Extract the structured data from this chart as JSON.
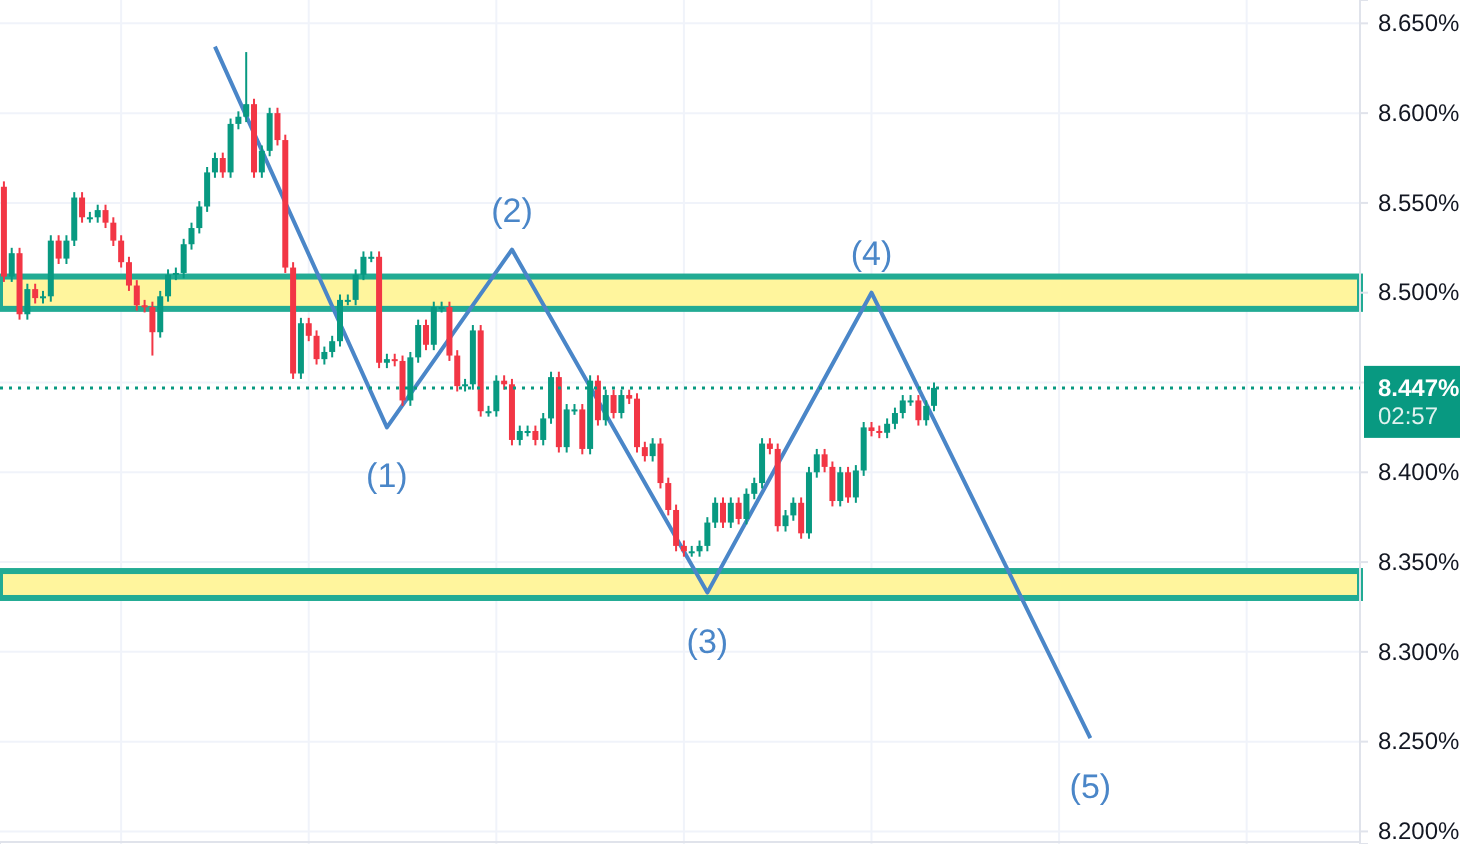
{
  "chart_data": {
    "type": "candlestick",
    "categories": [
      null,
      null,
      null,
      null,
      null,
      null,
      null,
      null,
      null,
      null,
      null,
      null,
      null,
      null,
      null,
      null,
      null,
      null,
      null,
      null,
      null,
      null,
      null,
      null,
      null,
      null,
      null,
      null,
      null,
      null,
      null,
      null,
      null,
      null,
      null,
      null,
      null,
      null,
      null,
      null,
      null,
      null,
      null,
      null,
      null,
      null,
      null,
      null,
      null,
      null,
      null,
      null,
      null,
      null,
      null,
      null,
      null,
      null,
      null,
      null,
      null,
      null,
      null,
      null,
      null,
      null,
      null,
      null,
      null,
      null,
      null,
      null,
      null,
      null,
      null,
      null,
      null,
      null,
      null,
      null,
      null,
      null,
      null,
      null,
      null,
      null,
      null,
      null,
      null,
      null,
      null,
      null,
      null,
      null,
      null,
      null,
      null,
      null,
      null,
      null,
      null,
      null,
      null,
      null,
      null,
      null,
      null,
      null,
      null,
      null,
      null,
      null,
      null,
      null,
      null,
      null,
      null,
      null,
      null,
      null,
      null,
      null,
      null,
      null,
      null,
      null,
      null,
      null,
      null,
      null,
      null,
      null,
      null,
      null,
      null,
      null,
      null,
      null,
      null,
      null,
      null,
      null,
      null,
      null,
      null,
      null,
      null,
      null,
      null,
      null,
      null,
      null,
      null,
      null,
      null,
      null,
      null,
      null,
      null,
      null,
      null,
      null,
      null,
      null,
      null,
      null,
      null,
      null,
      null,
      null,
      null,
      null,
      null,
      null
    ],
    "ohlc": [
      [
        8.559,
        8.562,
        8.506,
        8.509
      ],
      [
        8.509,
        8.525,
        8.506,
        8.522
      ],
      [
        8.522,
        8.525,
        8.485,
        8.488
      ],
      [
        8.488,
        8.505,
        8.485,
        8.502
      ],
      [
        8.502,
        8.505,
        8.494,
        8.497
      ],
      [
        8.497,
        8.501,
        8.494,
        8.498
      ],
      [
        8.498,
        8.532,
        8.495,
        8.529
      ],
      [
        8.529,
        8.532,
        8.516,
        8.519
      ],
      [
        8.519,
        8.532,
        8.516,
        8.529
      ],
      [
        8.529,
        8.556,
        8.526,
        8.553
      ],
      [
        8.553,
        8.556,
        8.539,
        8.542
      ],
      [
        8.542,
        8.545,
        8.539,
        8.542
      ],
      [
        8.542,
        8.549,
        8.539,
        8.546
      ],
      [
        8.546,
        8.549,
        8.536,
        8.539
      ],
      [
        8.539,
        8.542,
        8.526,
        8.529
      ],
      [
        8.529,
        8.532,
        8.514,
        8.517
      ],
      [
        8.517,
        8.52,
        8.501,
        8.504
      ],
      [
        8.504,
        8.507,
        8.49,
        8.493
      ],
      [
        8.493,
        8.496,
        8.489,
        8.492
      ],
      [
        8.492,
        8.495,
        8.465,
        8.478
      ],
      [
        8.478,
        8.501,
        8.475,
        8.498
      ],
      [
        8.498,
        8.513,
        8.495,
        8.51
      ],
      [
        8.51,
        8.514,
        8.507,
        8.511
      ],
      [
        8.511,
        8.53,
        8.508,
        8.527
      ],
      [
        8.527,
        8.539,
        8.524,
        8.536
      ],
      [
        8.536,
        8.551,
        8.533,
        8.548
      ],
      [
        8.548,
        8.57,
        8.545,
        8.567
      ],
      [
        8.567,
        8.578,
        8.564,
        8.575
      ],
      [
        8.575,
        8.578,
        8.564,
        8.567
      ],
      [
        8.567,
        8.597,
        8.564,
        8.594
      ],
      [
        8.594,
        8.601,
        8.591,
        8.598
      ],
      [
        8.598,
        8.634,
        8.595,
        8.605
      ],
      [
        8.605,
        8.608,
        8.564,
        8.567
      ],
      [
        8.567,
        8.582,
        8.564,
        8.579
      ],
      [
        8.579,
        8.603,
        8.576,
        8.6
      ],
      [
        8.6,
        8.603,
        8.582,
        8.585
      ],
      [
        8.585,
        8.588,
        8.511,
        8.514
      ],
      [
        8.514,
        8.517,
        8.452,
        8.455
      ],
      [
        8.455,
        8.486,
        8.452,
        8.483
      ],
      [
        8.483,
        8.486,
        8.473,
        8.476
      ],
      [
        8.476,
        8.479,
        8.46,
        8.463
      ],
      [
        8.463,
        8.47,
        8.46,
        8.467
      ],
      [
        8.467,
        8.476,
        8.464,
        8.473
      ],
      [
        8.473,
        8.499,
        8.47,
        8.496
      ],
      [
        8.496,
        8.499,
        8.493,
        8.496
      ],
      [
        8.496,
        8.513,
        8.493,
        8.51
      ],
      [
        8.51,
        8.523,
        8.507,
        8.52
      ],
      [
        8.52,
        8.523,
        8.517,
        8.52
      ],
      [
        8.52,
        8.523,
        8.458,
        8.461
      ],
      [
        8.461,
        8.466,
        8.458,
        8.463
      ],
      [
        8.463,
        8.466,
        8.459,
        8.462
      ],
      [
        8.462,
        8.465,
        8.437,
        8.44
      ],
      [
        8.44,
        8.467,
        8.437,
        8.464
      ],
      [
        8.464,
        8.485,
        8.461,
        8.482
      ],
      [
        8.482,
        8.485,
        8.468,
        8.471
      ],
      [
        8.471,
        8.495,
        8.468,
        8.492
      ],
      [
        8.492,
        8.495,
        8.489,
        8.492
      ],
      [
        8.492,
        8.495,
        8.462,
        8.465
      ],
      [
        8.465,
        8.468,
        8.445,
        8.448
      ],
      [
        8.448,
        8.452,
        8.445,
        8.449
      ],
      [
        8.449,
        8.482,
        8.446,
        8.479
      ],
      [
        8.479,
        8.482,
        8.431,
        8.434
      ],
      [
        8.434,
        8.437,
        8.431,
        8.434
      ],
      [
        8.434,
        8.454,
        8.431,
        8.451
      ],
      [
        8.451,
        8.454,
        8.446,
        8.449
      ],
      [
        8.449,
        8.452,
        8.415,
        8.418
      ],
      [
        8.418,
        8.426,
        8.415,
        8.423
      ],
      [
        8.423,
        8.426,
        8.42,
        8.423
      ],
      [
        8.423,
        8.426,
        8.415,
        8.418
      ],
      [
        8.418,
        8.433,
        8.415,
        8.43
      ],
      [
        8.43,
        8.456,
        8.427,
        8.453
      ],
      [
        8.453,
        8.456,
        8.411,
        8.414
      ],
      [
        8.414,
        8.438,
        8.411,
        8.435
      ],
      [
        8.435,
        8.438,
        8.432,
        8.435
      ],
      [
        8.435,
        8.438,
        8.41,
        8.413
      ],
      [
        8.413,
        8.454,
        8.41,
        8.451
      ],
      [
        8.451,
        8.454,
        8.426,
        8.429
      ],
      [
        8.429,
        8.446,
        8.426,
        8.443
      ],
      [
        8.443,
        8.446,
        8.43,
        8.433
      ],
      [
        8.433,
        8.446,
        8.43,
        8.443
      ],
      [
        8.443,
        8.446,
        8.438,
        8.441
      ],
      [
        8.441,
        8.444,
        8.411,
        8.414
      ],
      [
        8.414,
        8.417,
        8.406,
        8.409
      ],
      [
        8.409,
        8.419,
        8.406,
        8.416
      ],
      [
        8.416,
        8.419,
        8.391,
        8.394
      ],
      [
        8.394,
        8.397,
        8.376,
        8.379
      ],
      [
        8.379,
        8.382,
        8.356,
        8.359
      ],
      [
        8.359,
        8.362,
        8.353,
        8.356
      ],
      [
        8.356,
        8.359,
        8.353,
        8.356
      ],
      [
        8.356,
        8.362,
        8.353,
        8.359
      ],
      [
        8.359,
        8.375,
        8.356,
        8.372
      ],
      [
        8.372,
        8.386,
        8.369,
        8.383
      ],
      [
        8.383,
        8.386,
        8.369,
        8.372
      ],
      [
        8.372,
        8.386,
        8.369,
        8.383
      ],
      [
        8.383,
        8.386,
        8.371,
        8.374
      ],
      [
        8.374,
        8.391,
        8.371,
        8.388
      ],
      [
        8.388,
        8.397,
        8.385,
        8.394
      ],
      [
        8.394,
        8.419,
        8.391,
        8.416
      ],
      [
        8.416,
        8.419,
        8.41,
        8.413
      ],
      [
        8.413,
        8.416,
        8.367,
        8.37
      ],
      [
        8.37,
        8.379,
        8.367,
        8.376
      ],
      [
        8.376,
        8.386,
        8.373,
        8.383
      ],
      [
        8.383,
        8.386,
        8.363,
        8.366
      ],
      [
        8.366,
        8.403,
        8.363,
        8.4
      ],
      [
        8.4,
        8.413,
        8.397,
        8.41
      ],
      [
        8.41,
        8.413,
        8.4,
        8.403
      ],
      [
        8.403,
        8.406,
        8.381,
        8.384
      ],
      [
        8.384,
        8.403,
        8.381,
        8.4
      ],
      [
        8.4,
        8.403,
        8.383,
        8.386
      ],
      [
        8.386,
        8.404,
        8.383,
        8.401
      ],
      [
        8.401,
        8.428,
        8.398,
        8.425
      ],
      [
        8.425,
        8.428,
        8.42,
        8.423
      ],
      [
        8.423,
        8.426,
        8.419,
        8.422
      ],
      [
        8.422,
        8.43,
        8.419,
        8.427
      ],
      [
        8.427,
        8.436,
        8.424,
        8.433
      ],
      [
        8.433,
        8.443,
        8.43,
        8.44
      ],
      [
        8.44,
        8.443,
        8.437,
        8.44
      ],
      [
        8.44,
        8.443,
        8.426,
        8.429
      ],
      [
        8.429,
        8.44,
        8.426,
        8.437
      ],
      [
        8.437,
        8.45,
        8.434,
        8.447
      ],
      null,
      null,
      null,
      null,
      null,
      null,
      null,
      null,
      null,
      null,
      null,
      null,
      null,
      null,
      null,
      null,
      null,
      null,
      null,
      null,
      null,
      null,
      null,
      null,
      null,
      null,
      null,
      null,
      null,
      null,
      null,
      null,
      null,
      null,
      null,
      null,
      null,
      null,
      null,
      null,
      null,
      null,
      null,
      null,
      null,
      null,
      null,
      null,
      null,
      null,
      null,
      null,
      null,
      null
    ],
    "series": [
      {
        "type": "line",
        "color": "#4a86c8",
        "values": [
          null,
          null,
          null,
          null,
          null,
          null,
          null,
          null,
          null,
          null,
          null,
          null,
          null,
          null,
          null,
          null,
          null,
          null,
          null,
          null,
          null,
          null,
          null,
          null,
          null,
          null,
          null,
          8.637,
          null,
          null,
          null,
          null,
          null,
          null,
          null,
          null,
          null,
          null,
          null,
          null,
          null,
          null,
          null,
          null,
          null,
          null,
          null,
          null,
          null,
          8.425,
          null,
          null,
          null,
          null,
          null,
          null,
          null,
          null,
          null,
          null,
          null,
          null,
          null,
          null,
          null,
          8.524,
          null,
          null,
          null,
          null,
          null,
          null,
          null,
          null,
          null,
          null,
          null,
          null,
          null,
          null,
          null,
          null,
          null,
          null,
          null,
          null,
          null,
          null,
          null,
          null,
          8.333,
          null,
          null,
          null,
          null,
          null,
          null,
          null,
          null,
          null,
          null,
          null,
          null,
          null,
          null,
          null,
          null,
          null,
          null,
          null,
          null,
          8.5,
          null,
          null,
          null,
          null,
          null,
          null,
          null,
          null,
          null,
          null,
          null,
          null,
          null,
          null,
          null,
          null,
          null,
          null,
          null,
          null,
          null,
          null,
          null,
          null,
          null,
          null,
          null,
          8.252,
          null,
          null,
          null,
          null,
          null,
          null,
          null,
          null,
          null,
          null,
          null,
          null,
          null,
          null,
          null,
          null,
          null,
          null,
          null,
          null,
          null,
          null,
          null,
          null,
          null,
          null,
          null,
          null,
          null,
          null,
          null,
          null,
          null,
          null
        ]
      }
    ],
    "ylim": [
      8.193,
      8.663
    ],
    "yticks": [
      {
        "value": 8.2,
        "label": "8.200%"
      },
      {
        "value": 8.25,
        "label": "8.250%"
      },
      {
        "value": 8.3,
        "label": "8.300%"
      },
      {
        "value": 8.35,
        "label": "8.350%"
      },
      {
        "value": 8.4,
        "label": "8.400%"
      },
      {
        "value": 8.45,
        "label": null
      },
      {
        "value": 8.5,
        "label": "8.500%"
      },
      {
        "value": 8.55,
        "label": "8.550%"
      },
      {
        "value": 8.6,
        "label": "8.600%"
      },
      {
        "value": 8.65,
        "label": "8.650%"
      }
    ],
    "grid": true,
    "tick_labels": "y",
    "bands": [
      {
        "axis": "y",
        "from": 8.491,
        "to": 8.509,
        "color": "#fff59d"
      },
      {
        "axis": "y",
        "from": 8.33,
        "to": 8.345,
        "color": "#fff59d"
      }
    ],
    "ref_lines": [
      {
        "axis": "y",
        "value": 8.447,
        "label": "8.447%",
        "color": "#089981",
        "line_style": "dotted"
      }
    ],
    "annotations": [
      {
        "text": "(1)",
        "y": 8.425
      },
      {
        "text": "(2)",
        "y": 8.524
      },
      {
        "text": "(3)",
        "y": 8.333
      },
      {
        "text": "(4)",
        "y": 8.5
      },
      {
        "text": "(5)",
        "y": 8.252
      },
      "02:57"
    ]
  }
}
